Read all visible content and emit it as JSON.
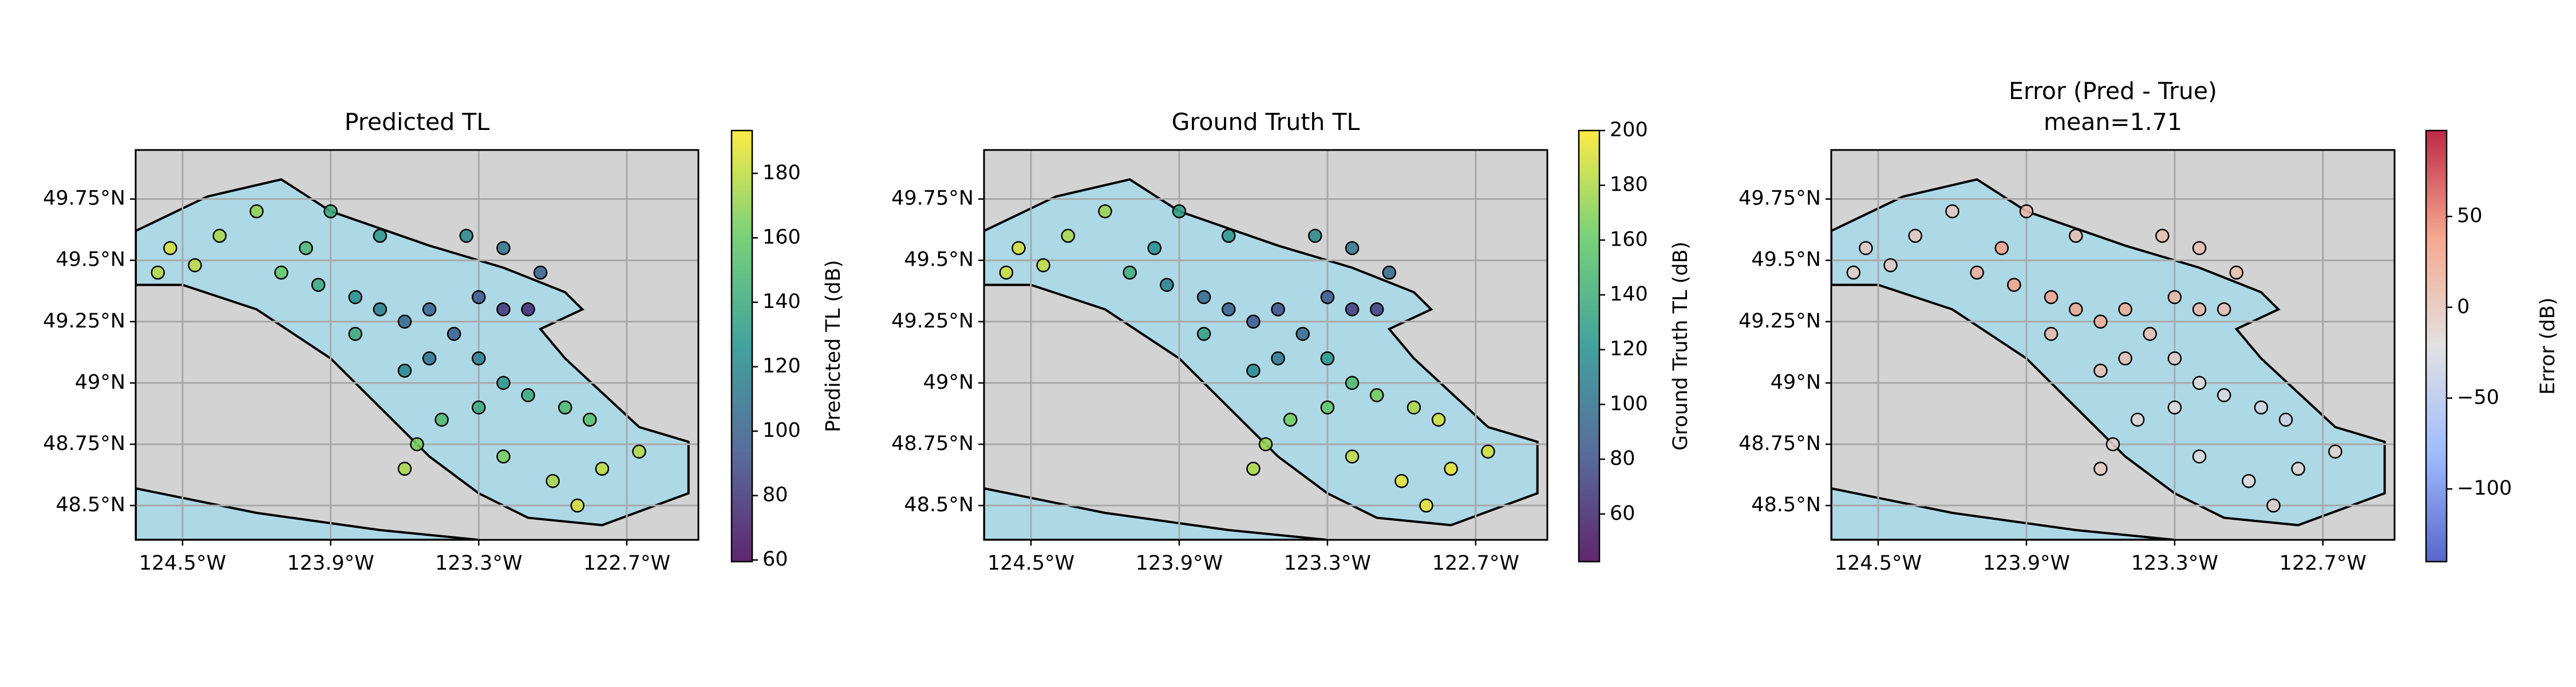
{
  "chart_data": [
    {
      "type": "scatter",
      "title": "Predicted TL",
      "colorbar_label": "Predicted TL (dB)",
      "colormap": "viridis",
      "xlim": [
        -124.69,
        -122.41
      ],
      "ylim": [
        48.36,
        49.95
      ],
      "clim": [
        59.5,
        193.3
      ],
      "grid": true,
      "xticks": [
        {
          "value": -124.5,
          "label": "124.5°W"
        },
        {
          "value": -123.9,
          "label": "123.9°W"
        },
        {
          "value": -123.3,
          "label": "123.3°W"
        },
        {
          "value": -122.7,
          "label": "122.7°W"
        }
      ],
      "yticks": [
        {
          "value": 48.5,
          "label": "48.5°N"
        },
        {
          "value": 48.75,
          "label": "48.75°N"
        },
        {
          "value": 49,
          "label": "49°N"
        },
        {
          "value": 49.25,
          "label": "49.25°N"
        },
        {
          "value": 49.5,
          "label": "49.5°N"
        },
        {
          "value": 49.75,
          "label": "49.75°N"
        }
      ],
      "cticks": [
        60,
        80,
        100,
        120,
        140,
        160,
        180
      ],
      "x": [
        -124.55,
        -124.45,
        -124.6,
        -124.35,
        -124.2,
        -124.0,
        -124.1,
        -123.95,
        -123.8,
        -123.7,
        -123.6,
        -123.5,
        -123.3,
        -123.2,
        -123.1,
        -123.4,
        -123.5,
        -123.6,
        -123.3,
        -123.2,
        -123.1,
        -122.95,
        -122.85,
        -123.3,
        -123.45,
        -123.55,
        -123.6,
        -123.2,
        -123.0,
        -122.8,
        -122.65,
        -122.9,
        -123.7,
        -123.9,
        -123.2,
        -123.05,
        -123.35,
        -123.8
      ],
      "y": [
        49.55,
        49.48,
        49.45,
        49.6,
        49.7,
        49.55,
        49.45,
        49.4,
        49.35,
        49.3,
        49.25,
        49.3,
        49.35,
        49.3,
        49.3,
        49.2,
        49.1,
        49.05,
        49.1,
        49.0,
        48.95,
        48.9,
        48.85,
        48.9,
        48.85,
        48.75,
        48.65,
        48.7,
        48.6,
        48.65,
        48.72,
        48.5,
        49.6,
        49.7,
        49.55,
        49.45,
        49.6,
        49.2
      ],
      "c": [
        185,
        180,
        178,
        175,
        170,
        150,
        160,
        140,
        125,
        115,
        105,
        100,
        95,
        80,
        75,
        100,
        110,
        120,
        115,
        130,
        140,
        150,
        155,
        140,
        150,
        165,
        175,
        165,
        175,
        180,
        178,
        185,
        130,
        140,
        110,
        100,
        120,
        140
      ]
    },
    {
      "type": "scatter",
      "title": "Ground Truth TL",
      "colorbar_label": "Ground Truth TL (dB)",
      "colormap": "viridis",
      "xlim": [
        -124.69,
        -122.41
      ],
      "ylim": [
        48.36,
        49.95
      ],
      "clim": [
        42.6,
        200
      ],
      "grid": true,
      "xticks": [
        {
          "value": -124.5,
          "label": "124.5°W"
        },
        {
          "value": -123.9,
          "label": "123.9°W"
        },
        {
          "value": -123.3,
          "label": "123.3°W"
        },
        {
          "value": -122.7,
          "label": "122.7°W"
        }
      ],
      "yticks": [
        {
          "value": 48.5,
          "label": "48.5°N"
        },
        {
          "value": 48.75,
          "label": "48.75°N"
        },
        {
          "value": 49,
          "label": "49°N"
        },
        {
          "value": 49.25,
          "label": "49.25°N"
        },
        {
          "value": 49.5,
          "label": "49.5°N"
        },
        {
          "value": 49.75,
          "label": "49.75°N"
        }
      ],
      "cticks": [
        60,
        80,
        100,
        120,
        140,
        160,
        180,
        200
      ],
      "x": [
        -124.55,
        -124.45,
        -124.6,
        -124.35,
        -124.2,
        -124.0,
        -124.1,
        -123.95,
        -123.8,
        -123.7,
        -123.6,
        -123.5,
        -123.3,
        -123.2,
        -123.1,
        -123.4,
        -123.5,
        -123.6,
        -123.3,
        -123.2,
        -123.1,
        -122.95,
        -122.85,
        -123.3,
        -123.45,
        -123.55,
        -123.6,
        -123.2,
        -123.0,
        -122.8,
        -122.65,
        -122.9,
        -123.7,
        -123.9,
        -123.2,
        -123.05,
        -123.35,
        -123.8
      ],
      "y": [
        49.55,
        49.48,
        49.45,
        49.6,
        49.7,
        49.55,
        49.45,
        49.4,
        49.35,
        49.3,
        49.25,
        49.3,
        49.35,
        49.3,
        49.3,
        49.2,
        49.1,
        49.05,
        49.1,
        49.0,
        48.95,
        48.9,
        48.85,
        48.9,
        48.85,
        48.75,
        48.65,
        48.7,
        48.6,
        48.65,
        48.72,
        48.5,
        49.6,
        49.7,
        49.55,
        49.45,
        49.6,
        49.2
      ],
      "c": [
        190,
        185,
        188,
        180,
        175,
        120,
        140,
        110,
        95,
        90,
        85,
        80,
        85,
        70,
        70,
        95,
        105,
        115,
        125,
        150,
        165,
        180,
        190,
        160,
        165,
        175,
        180,
        185,
        195,
        195,
        190,
        195,
        125,
        130,
        105,
        95,
        115,
        130
      ]
    },
    {
      "type": "scatter",
      "title": "Error (Pred - True)",
      "subtitle": "mean=1.71",
      "colorbar_label": "Error (dB)",
      "colormap": "coolwarm",
      "xlim": [
        -124.69,
        -122.41
      ],
      "ylim": [
        48.36,
        49.95
      ],
      "clim": [
        -140,
        97.3
      ],
      "grid": true,
      "xticks": [
        {
          "value": -124.5,
          "label": "124.5°W"
        },
        {
          "value": -123.9,
          "label": "123.9°W"
        },
        {
          "value": -123.3,
          "label": "123.3°W"
        },
        {
          "value": -122.7,
          "label": "122.7°W"
        }
      ],
      "yticks": [
        {
          "value": 48.5,
          "label": "48.5°N"
        },
        {
          "value": 48.75,
          "label": "48.75°N"
        },
        {
          "value": 49,
          "label": "49°N"
        },
        {
          "value": 49.25,
          "label": "49.25°N"
        },
        {
          "value": 49.5,
          "label": "49.5°N"
        },
        {
          "value": 49.75,
          "label": "49.75°N"
        }
      ],
      "cticks": [
        {
          "value": -100,
          "label": "−100"
        },
        {
          "value": -50,
          "label": "−50"
        },
        0,
        50
      ],
      "x": [
        -124.55,
        -124.45,
        -124.6,
        -124.35,
        -124.2,
        -124.0,
        -124.1,
        -123.95,
        -123.8,
        -123.7,
        -123.6,
        -123.5,
        -123.3,
        -123.2,
        -123.1,
        -123.4,
        -123.5,
        -123.6,
        -123.3,
        -123.2,
        -123.1,
        -122.95,
        -122.85,
        -123.3,
        -123.45,
        -123.55,
        -123.6,
        -123.2,
        -123.0,
        -122.8,
        -122.65,
        -122.9,
        -123.7,
        -123.9,
        -123.2,
        -123.05,
        -123.35,
        -123.8
      ],
      "y": [
        49.55,
        49.48,
        49.45,
        49.6,
        49.7,
        49.55,
        49.45,
        49.4,
        49.35,
        49.3,
        49.25,
        49.3,
        49.35,
        49.3,
        49.3,
        49.2,
        49.1,
        49.05,
        49.1,
        49.0,
        48.95,
        48.9,
        48.85,
        48.9,
        48.85,
        48.75,
        48.65,
        48.7,
        48.6,
        48.65,
        48.72,
        48.5,
        49.6,
        49.7,
        49.55,
        49.45,
        49.6,
        49.2
      ],
      "c": [
        -5,
        -5,
        -10,
        -5,
        -5,
        30,
        20,
        30,
        30,
        25,
        20,
        20,
        10,
        10,
        5,
        5,
        5,
        5,
        -10,
        -20,
        -25,
        -30,
        -35,
        -20,
        -15,
        -10,
        -5,
        -20,
        -20,
        -15,
        -12,
        -10,
        5,
        10,
        5,
        5,
        5,
        10
      ]
    }
  ]
}
